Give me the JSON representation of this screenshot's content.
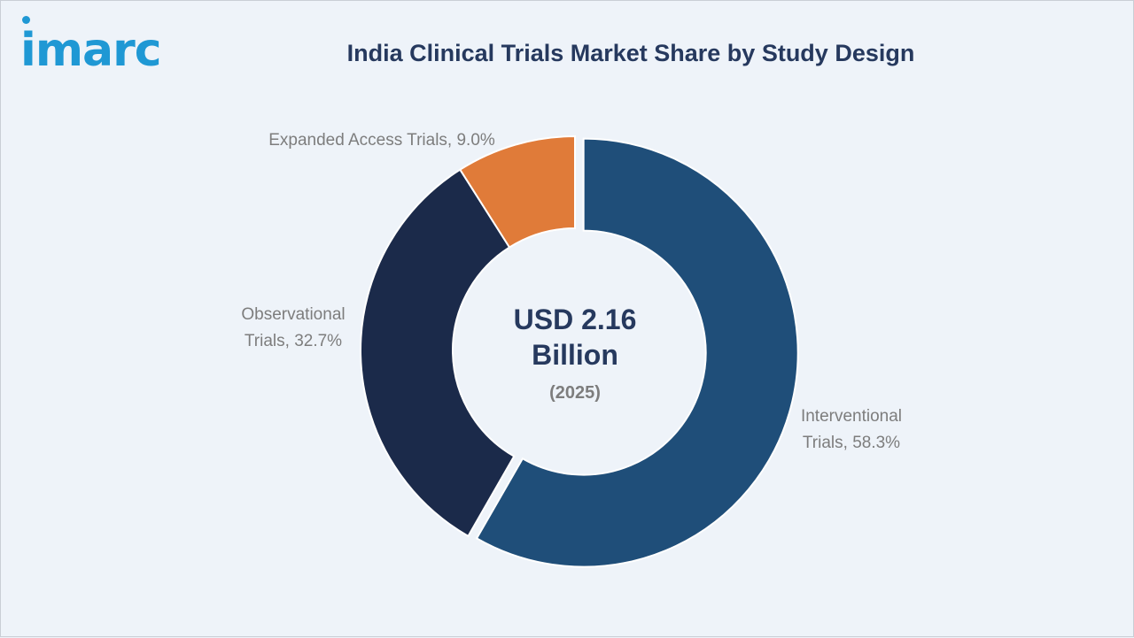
{
  "brand": {
    "logo_text": "imarc",
    "color": "#1f98d4"
  },
  "title": "India Clinical Trials Market Share by Study Design",
  "center": {
    "value": "USD 2.16 Billion",
    "year": "(2025)"
  },
  "chart_data": {
    "type": "pie",
    "donut": true,
    "slices": [
      {
        "label": "Interventional Trials",
        "display": "Interventional Trials, 58.3%",
        "value": 58.3,
        "color": "#1f4e79"
      },
      {
        "label": "Observational Trials",
        "display": "Observational Trials, 32.7%",
        "value": 32.7,
        "color": "#1b2a4a"
      },
      {
        "label": "Expanded Access Trials",
        "display": "Expanded Access Trials, 9.0%",
        "value": 9.0,
        "color": "#e07b39"
      }
    ]
  }
}
